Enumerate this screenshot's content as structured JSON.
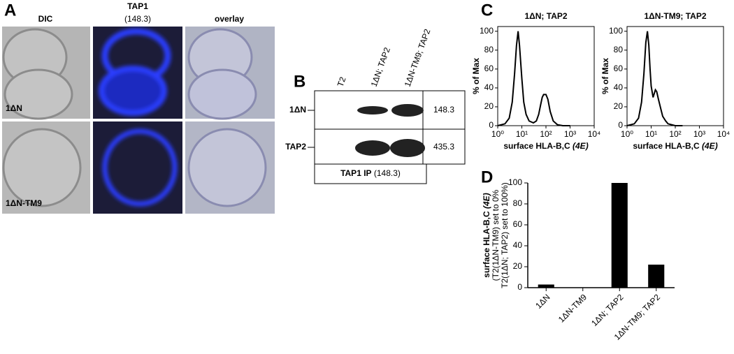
{
  "panel_a": {
    "letter": "A",
    "columns": [
      "DIC",
      "TAP1",
      "overlay"
    ],
    "tap1_antibody": "(148.3)",
    "rows": [
      "1ΔN",
      "1ΔN-TM9"
    ]
  },
  "panel_b": {
    "letter": "B",
    "lanes": [
      "T2",
      "1ΔN; TAP2",
      "1ΔN-TM9; TAP2"
    ],
    "rows": [
      {
        "label": "1ΔN",
        "antibody": "148.3"
      },
      {
        "label": "TAP2",
        "antibody": "435.3"
      }
    ],
    "ip_label": "TAP1 IP",
    "ip_antibody": "(148.3)"
  },
  "panel_c": {
    "letter": "C",
    "charts": [
      {
        "type": "line",
        "title": "1ΔN; TAP2",
        "y_label": "% of Max",
        "x_label": "surface HLA-B,C",
        "x_label_italic": "(4E)",
        "log_x": true,
        "color": "#000000",
        "x": [
          1,
          2,
          3,
          4,
          5,
          6,
          7,
          8,
          10,
          12,
          15,
          20,
          30,
          40,
          50,
          60,
          70,
          80,
          100,
          120,
          150,
          200,
          300,
          500,
          1000
        ],
        "values": [
          0,
          2,
          8,
          25,
          55,
          85,
          100,
          85,
          50,
          25,
          12,
          5,
          3,
          5,
          12,
          22,
          30,
          33,
          33,
          28,
          15,
          5,
          1,
          0,
          0
        ],
        "xlim": [
          1,
          10000
        ],
        "xticks": [
          {
            "value": 1,
            "label": "10⁰"
          },
          {
            "value": 10,
            "label": "10¹"
          },
          {
            "value": 100,
            "label": "10²"
          },
          {
            "value": 1000,
            "label": "10³"
          },
          {
            "value": 10000,
            "label": "10⁴"
          }
        ],
        "ylim": [
          0,
          105
        ],
        "yticks": [
          0,
          20,
          40,
          60,
          80,
          100
        ]
      },
      {
        "type": "line",
        "title": "1ΔN-TM9; TAP2",
        "y_label": "% of Max",
        "x_label": "surface HLA-B,C",
        "x_label_italic": "(4E)",
        "log_x": true,
        "color": "#000000",
        "x": [
          1,
          2,
          3,
          4,
          5,
          6,
          7,
          8,
          9,
          10,
          12,
          15,
          17,
          20,
          25,
          30,
          40,
          50,
          70,
          100,
          200
        ],
        "values": [
          0,
          2,
          8,
          25,
          55,
          88,
          100,
          85,
          60,
          42,
          30,
          38,
          36,
          28,
          18,
          10,
          5,
          2,
          1,
          0,
          0
        ],
        "xlim": [
          1,
          10000
        ],
        "xticks": [
          {
            "value": 1,
            "label": "10⁰"
          },
          {
            "value": 10,
            "label": "10¹"
          },
          {
            "value": 100,
            "label": "10²"
          },
          {
            "value": 1000,
            "label": "10³"
          },
          {
            "value": 10000,
            "label": "10⁴"
          }
        ],
        "ylim": [
          0,
          105
        ],
        "yticks": [
          0,
          20,
          40,
          60,
          80,
          100
        ]
      }
    ]
  },
  "panel_d": {
    "letter": "D",
    "chart_data": {
      "type": "bar",
      "color": "#000000",
      "y_label": [
        "surface HLA-B,C",
        "(T2(1ΔN-TM9) set to 0%",
        "T2(1ΔN; TAP2) set to 100%)"
      ],
      "y_label_italic": "(4E)",
      "categories": [
        "1ΔN",
        "1ΔN-TM9",
        "1ΔN; TAP2",
        "1ΔN-TM9; TAP2"
      ],
      "values": [
        3,
        0,
        100,
        22
      ],
      "ylim": [
        0,
        100
      ],
      "yticks": [
        0,
        20,
        40,
        60,
        80,
        100
      ]
    }
  }
}
